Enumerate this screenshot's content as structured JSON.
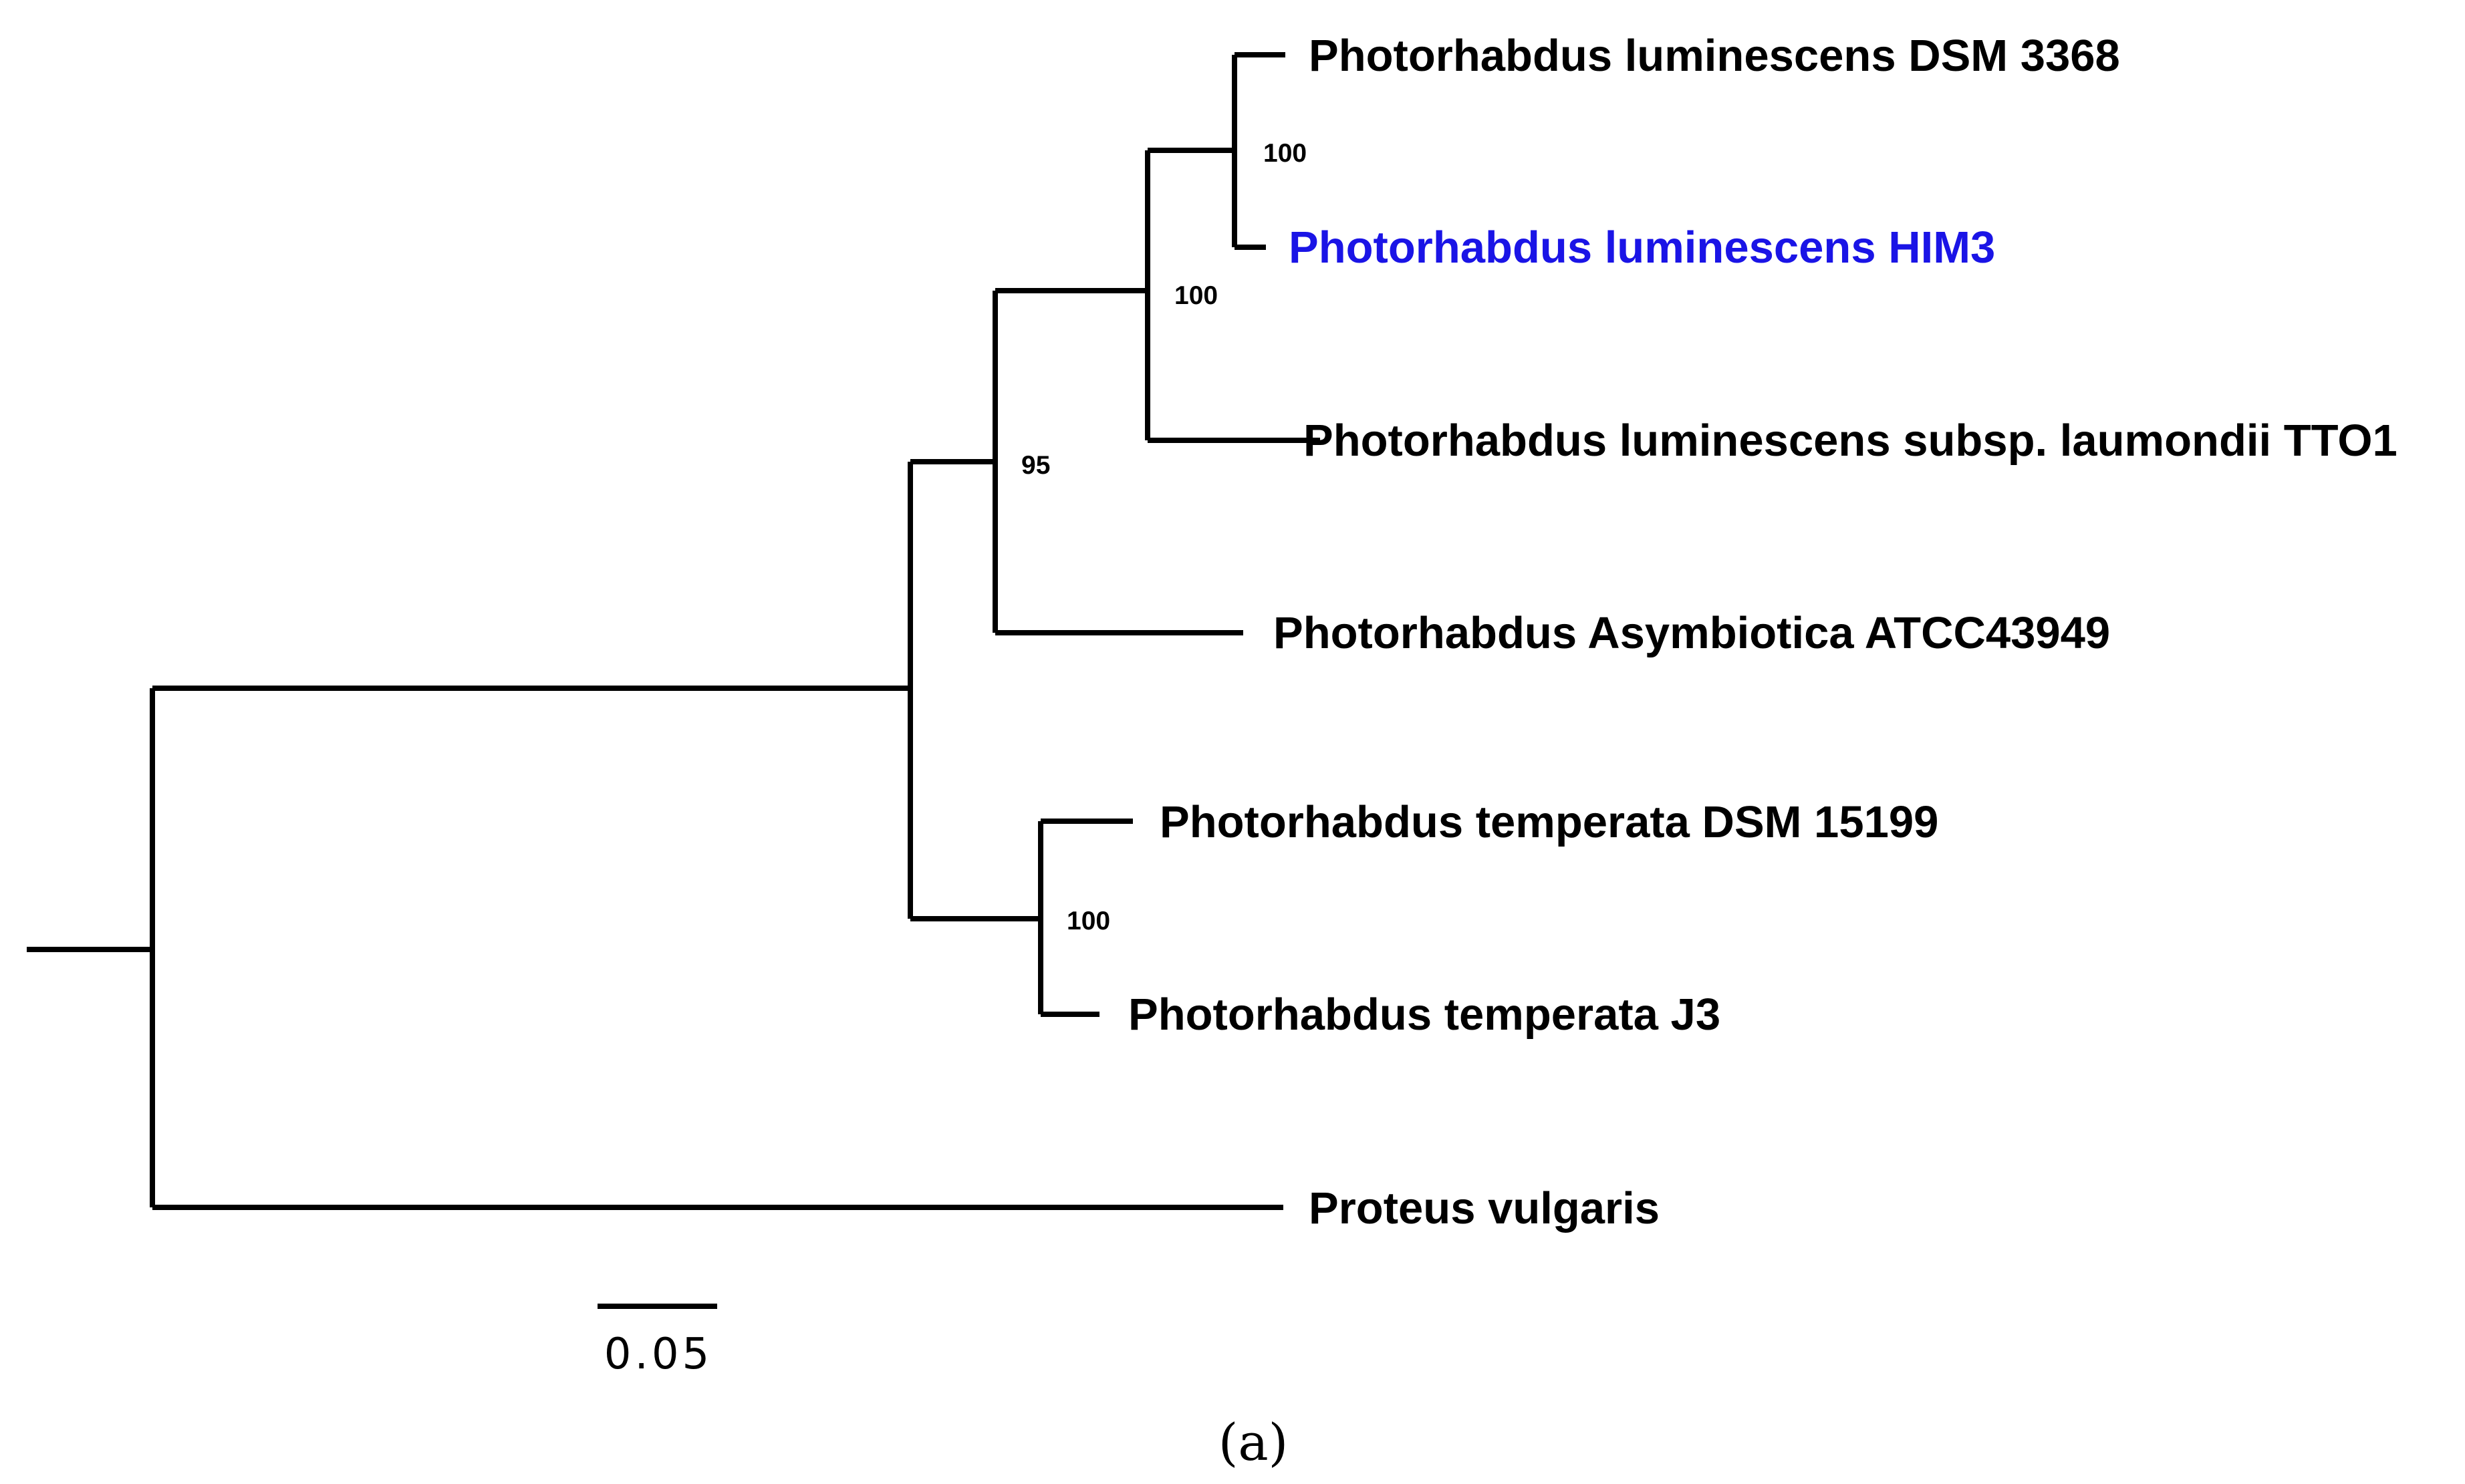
{
  "taxa": {
    "dsm3368": "Photorhabdus luminescens DSM 3368",
    "him3": "Photorhabdus luminescens HIM3",
    "tto1": "Photorhabdus luminescens subsp. laumondii TTO1",
    "atcc43949": "Photorhabdus Asymbiotica ATCC43949",
    "dsm15199": "Photorhabdus temperata DSM 15199",
    "j3": "Photorhabdus temperata J3",
    "proteus": "Proteus vulgaris"
  },
  "support": {
    "lum_pair": "100",
    "lum_clade": "100",
    "lum_asym": "95",
    "temperata": "100"
  },
  "scale_bar": {
    "label": "0.05"
  },
  "caption": "(a)",
  "colors": {
    "branch": "#000000",
    "label": "#000000",
    "highlight": "#1a14e6"
  }
}
